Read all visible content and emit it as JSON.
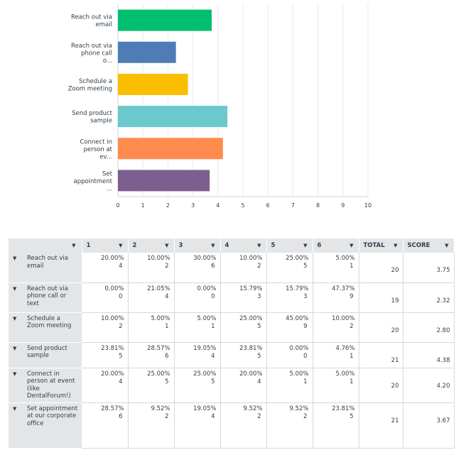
{
  "chart_data": {
    "type": "bar",
    "orientation": "horizontal",
    "categories": [
      "Reach out via email",
      "Reach out via phone call o...",
      "Schedule a Zoom meeting",
      "Send product sample",
      "Connect in person at ev...",
      "Set appointment ..."
    ],
    "values": [
      3.75,
      2.32,
      2.8,
      4.38,
      4.2,
      3.67
    ],
    "colors": [
      "#00bf6f",
      "#507cb6",
      "#f9be00",
      "#6bc8cd",
      "#ff8b4f",
      "#7d5e90"
    ],
    "xlim": [
      0,
      10
    ],
    "xticks": [
      "0",
      "1",
      "2",
      "3",
      "4",
      "5",
      "6",
      "7",
      "8",
      "9",
      "10"
    ],
    "grid": true,
    "title": "",
    "xlabel": "",
    "ylabel": ""
  },
  "table": {
    "columns": [
      "1",
      "2",
      "3",
      "4",
      "5",
      "6",
      "TOTAL",
      "SCORE"
    ],
    "rows": [
      {
        "label": "Reach out via email",
        "cells": [
          [
            "20.00%",
            "4"
          ],
          [
            "10.00%",
            "2"
          ],
          [
            "30.00%",
            "6"
          ],
          [
            "10.00%",
            "2"
          ],
          [
            "25.00%",
            "5"
          ],
          [
            "5.00%",
            "1"
          ]
        ],
        "total": "20",
        "score": "3.75"
      },
      {
        "label": "Reach out via phone call or text",
        "cells": [
          [
            "0.00%",
            "0"
          ],
          [
            "21.05%",
            "4"
          ],
          [
            "0.00%",
            "0"
          ],
          [
            "15.79%",
            "3"
          ],
          [
            "15.79%",
            "3"
          ],
          [
            "47.37%",
            "9"
          ]
        ],
        "total": "19",
        "score": "2.32"
      },
      {
        "label": "Schedule a Zoom meeting",
        "cells": [
          [
            "10.00%",
            "2"
          ],
          [
            "5.00%",
            "1"
          ],
          [
            "5.00%",
            "1"
          ],
          [
            "25.00%",
            "5"
          ],
          [
            "45.00%",
            "9"
          ],
          [
            "10.00%",
            "2"
          ]
        ],
        "total": "20",
        "score": "2.80"
      },
      {
        "label": "Send product sample",
        "cells": [
          [
            "23.81%",
            "5"
          ],
          [
            "28.57%",
            "6"
          ],
          [
            "19.05%",
            "4"
          ],
          [
            "23.81%",
            "5"
          ],
          [
            "0.00%",
            "0"
          ],
          [
            "4.76%",
            "1"
          ]
        ],
        "total": "21",
        "score": "4.38"
      },
      {
        "label": "Connect in person at event (like DentalForum!)",
        "cells": [
          [
            "20.00%",
            "4"
          ],
          [
            "25.00%",
            "5"
          ],
          [
            "25.00%",
            "5"
          ],
          [
            "20.00%",
            "4"
          ],
          [
            "5.00%",
            "1"
          ],
          [
            "5.00%",
            "1"
          ]
        ],
        "total": "20",
        "score": "4.20"
      },
      {
        "label": "Set appointment at our corporate office",
        "cells": [
          [
            "28.57%",
            "6"
          ],
          [
            "9.52%",
            "2"
          ],
          [
            "19.05%",
            "4"
          ],
          [
            "9.52%",
            "2"
          ],
          [
            "9.52%",
            "2"
          ],
          [
            "23.81%",
            "5"
          ]
        ],
        "total": "21",
        "score": "3.67"
      }
    ]
  },
  "icons": {
    "sort": "caret-down-icon"
  }
}
